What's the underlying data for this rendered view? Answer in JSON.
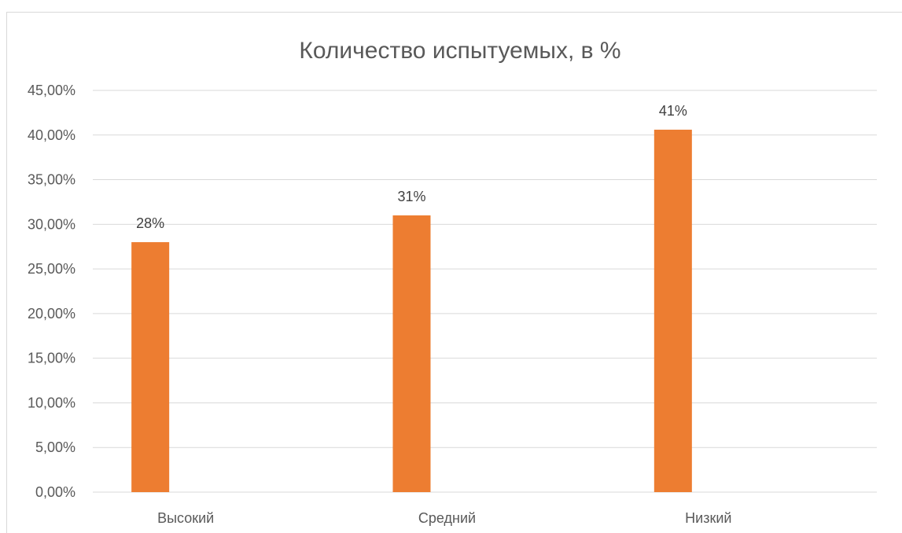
{
  "chart_data": {
    "type": "bar",
    "title": "Количество испытуемых, в %",
    "categories": [
      "Высокий",
      "Средний",
      "Низкий"
    ],
    "values": [
      28,
      31,
      40.6
    ],
    "data_labels": [
      "28%",
      "31%",
      "41%"
    ],
    "y_ticks": [
      "0,00%",
      "5,00%",
      "10,00%",
      "15,00%",
      "20,00%",
      "25,00%",
      "30,00%",
      "35,00%",
      "40,00%",
      "45,00%"
    ],
    "ylim": [
      0,
      45
    ],
    "ystep": 5,
    "grid": true,
    "legend": "none",
    "bar_color": "#ED7D31"
  }
}
